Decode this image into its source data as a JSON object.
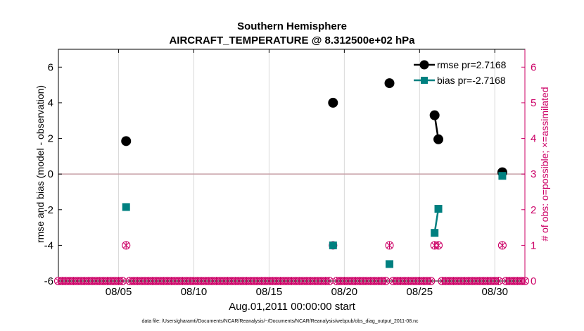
{
  "chart_data": {
    "type": "scatter",
    "title": "Southern Hemisphere",
    "subtitle": "AIRCRAFT_TEMPERATURE @ 8.312500e+02 hPa",
    "xlabel": "Aug.01,2011 00:00:00 start",
    "ylabel": "rmse and bias (model - observation)",
    "y2label": "# of obs: o=possible; ×=assimilated",
    "footnote": "data file: /Users/gharamti/Documents/NCAR/Reanalysis/~/Documents/NCAR/Reanalysis/webpub/obs_diag_output_2011-08.nc",
    "xlim": [
      1,
      32
    ],
    "ylim": [
      -6,
      7
    ],
    "y2lim": [
      0,
      6.5
    ],
    "x_ticks": [
      5,
      10,
      15,
      20,
      25,
      30
    ],
    "x_tick_labels": [
      "08/05",
      "08/10",
      "08/15",
      "08/20",
      "08/25",
      "08/30"
    ],
    "y_ticks": [
      -6,
      -4,
      -2,
      0,
      2,
      4,
      6
    ],
    "y_tick_labels": [
      "-6",
      "-4",
      "-2",
      "0",
      "2",
      "4",
      "6"
    ],
    "y2_ticks": [
      0,
      1,
      2,
      3,
      4,
      5,
      6
    ],
    "y2_tick_labels": [
      "0",
      "1",
      "2",
      "3",
      "4",
      "5",
      "6"
    ],
    "legend_position": "top-right",
    "grid": "vertical",
    "colors": {
      "rmse": "#000000",
      "bias": "#008080",
      "count": "#cc0066",
      "zero_line": "#c8a0a8",
      "grid": "#d9d9d9"
    },
    "series": [
      {
        "name": "rmse pr=2.7168",
        "marker": "circle",
        "x": [
          5.5,
          19.25,
          23,
          26,
          26.25,
          30.5
        ],
        "values": [
          1.85,
          4.0,
          5.1,
          3.3,
          1.95,
          0.1
        ],
        "segments": [
          [
            3,
            4
          ]
        ]
      },
      {
        "name": "bias pr=-2.7168",
        "marker": "square",
        "x": [
          5.5,
          19.25,
          23,
          26,
          26.25,
          30.5
        ],
        "values": [
          -1.85,
          -4.0,
          -5.05,
          -3.3,
          -1.95,
          -0.1
        ],
        "segments": [
          [
            3,
            4
          ]
        ]
      }
    ],
    "obs_count": {
      "name": "# of obs",
      "x_start": 1,
      "x_step": 0.25,
      "x_end": 32,
      "nonzero_x": [
        5.5,
        19.25,
        23,
        26,
        26.25,
        30.5
      ],
      "nonzero_value": 1,
      "default_value": 0
    }
  }
}
